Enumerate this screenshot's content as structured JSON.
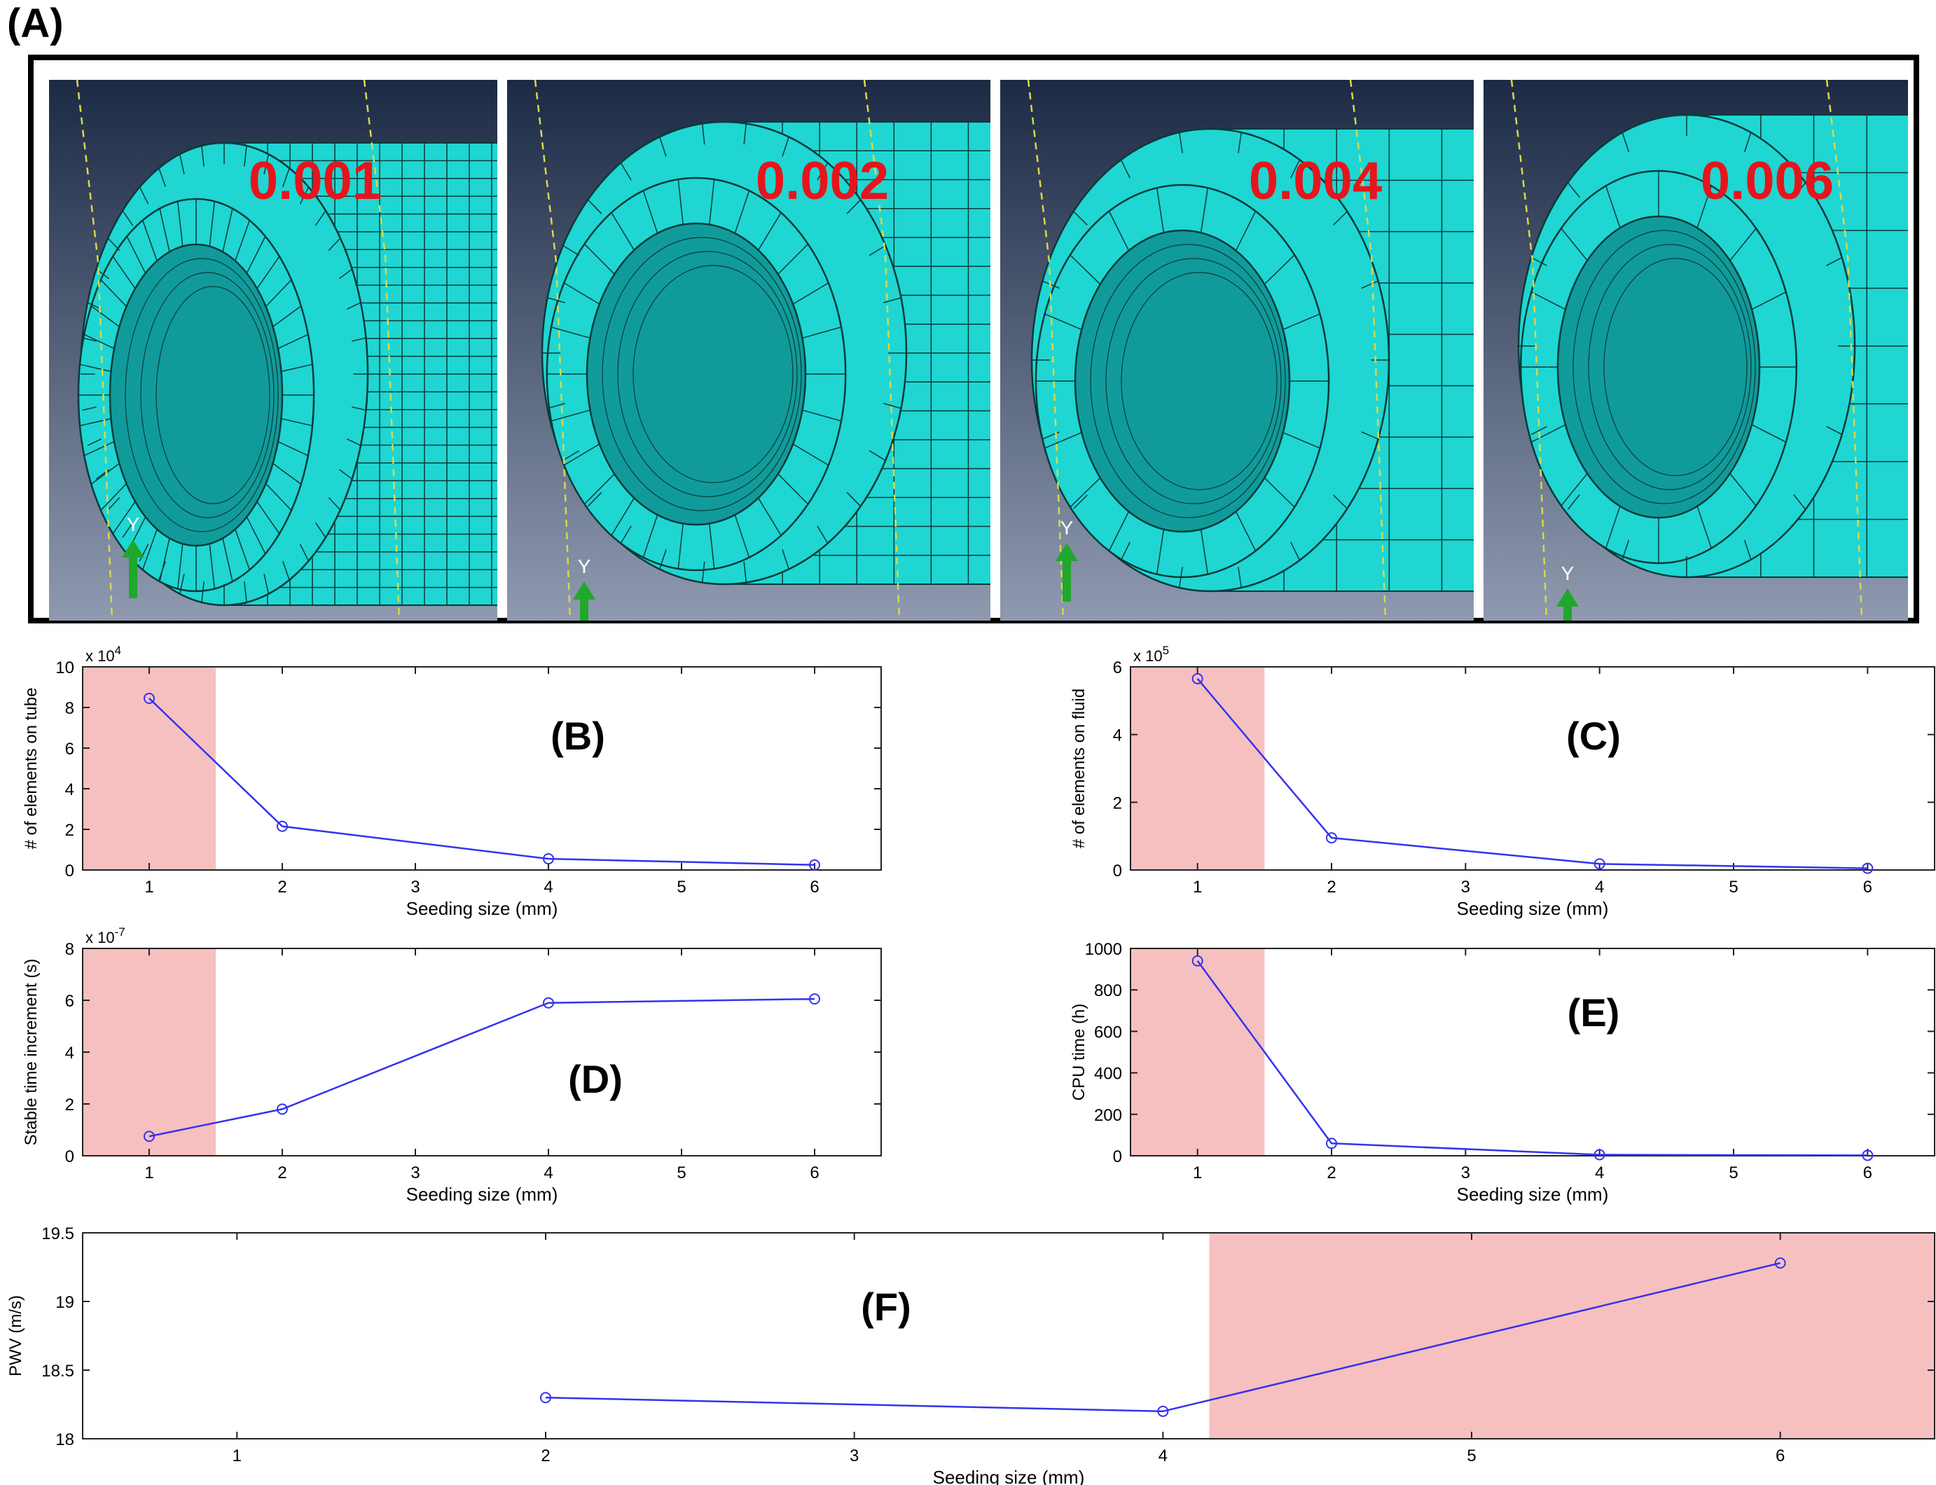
{
  "figure": {
    "title": "(A)",
    "mesh_panels": [
      {
        "label": "0.001",
        "axis_label": "Y"
      },
      {
        "label": "0.002",
        "axis_label": "Y"
      },
      {
        "label": "0.004",
        "axis_label": "Y"
      },
      {
        "label": "0.006",
        "axis_label": "Y"
      }
    ]
  },
  "colors": {
    "mesh_fill": "#1fd6d2",
    "mesh_dark": "#109b9a",
    "mesh_line": "#0a3a3a",
    "background_top": "#1c2a44",
    "background_bottom": "#8f9ab0",
    "label_red": "#e8141c",
    "highlight": "#f7c0c0",
    "series": "#3333ee",
    "axis_arrow": "#1fa82b"
  },
  "chart_data": [
    {
      "id": "B",
      "type": "line",
      "panel_label": "(B)",
      "x": [
        1,
        2,
        4,
        6
      ],
      "y": [
        8.45,
        2.15,
        0.55,
        0.25
      ],
      "exponent": "x 10",
      "exponent_power": "4",
      "xlabel": "Seeding size (mm)",
      "ylabel": "# of elements on tube",
      "xlim": [
        0.5,
        6.5
      ],
      "ylim": [
        0,
        10
      ],
      "xticks": [
        "1",
        "2",
        "3",
        "4",
        "5",
        "6"
      ],
      "yticks": [
        "0",
        "2",
        "4",
        "6",
        "8",
        "10"
      ],
      "highlight_x": [
        0.5,
        1.5
      ]
    },
    {
      "id": "C",
      "type": "line",
      "panel_label": "(C)",
      "x": [
        1,
        2,
        4,
        6
      ],
      "y": [
        5.65,
        0.95,
        0.18,
        0.05
      ],
      "exponent": "x 10",
      "exponent_power": "5",
      "xlabel": "Seeding size (mm)",
      "ylabel": "# of elements on fluid",
      "xlim": [
        0.5,
        6.5
      ],
      "ylim": [
        0,
        6
      ],
      "xticks": [
        "1",
        "2",
        "3",
        "4",
        "5",
        "6"
      ],
      "yticks": [
        "0",
        "2",
        "4",
        "6"
      ],
      "highlight_x": [
        0.5,
        1.5
      ]
    },
    {
      "id": "D",
      "type": "line",
      "panel_label": "(D)",
      "x": [
        1,
        2,
        4,
        6
      ],
      "y": [
        0.75,
        1.8,
        5.9,
        6.05
      ],
      "exponent": "x 10",
      "exponent_power": "-7",
      "xlabel": "Seeding size (mm)",
      "ylabel": "Stable time increment (s)",
      "xlim": [
        0.5,
        6.5
      ],
      "ylim": [
        0,
        8
      ],
      "xticks": [
        "1",
        "2",
        "3",
        "4",
        "5",
        "6"
      ],
      "yticks": [
        "0",
        "2",
        "4",
        "6",
        "8"
      ],
      "highlight_x": [
        0.5,
        1.5
      ]
    },
    {
      "id": "E",
      "type": "line",
      "panel_label": "(E)",
      "x": [
        1,
        2,
        4,
        6
      ],
      "y": [
        940,
        60,
        5,
        2
      ],
      "exponent": "",
      "exponent_power": "",
      "xlabel": "Seeding size (mm)",
      "ylabel": "CPU time (h)",
      "xlim": [
        0.5,
        6.5
      ],
      "ylim": [
        0,
        1000
      ],
      "xticks": [
        "1",
        "2",
        "3",
        "4",
        "5",
        "6"
      ],
      "yticks": [
        "0",
        "200",
        "400",
        "600",
        "800",
        "1000"
      ],
      "highlight_x": [
        0.5,
        1.5
      ]
    },
    {
      "id": "F",
      "type": "line",
      "panel_label": "(F)",
      "x": [
        2,
        4,
        6
      ],
      "y": [
        18.3,
        18.2,
        19.28
      ],
      "exponent": "",
      "exponent_power": "",
      "xlabel": "Seeding size (mm)",
      "ylabel": "PWV (m/s)",
      "xlim": [
        0.5,
        6.5
      ],
      "ylim": [
        18,
        19.5
      ],
      "xticks": [
        "1",
        "2",
        "3",
        "4",
        "5",
        "6"
      ],
      "yticks": [
        "18",
        "18.5",
        "19",
        "19.5"
      ],
      "highlight_x": [
        4.15,
        6.5
      ]
    }
  ]
}
